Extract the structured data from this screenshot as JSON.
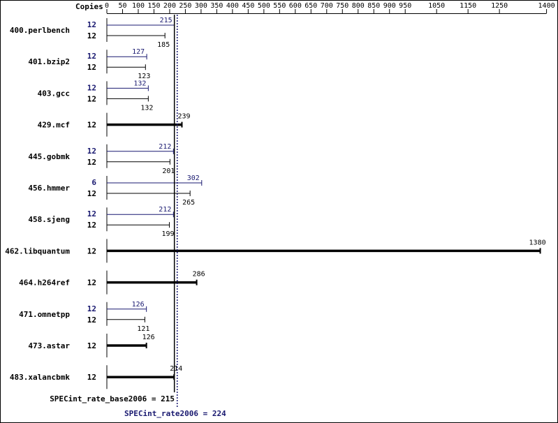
{
  "chart_data": {
    "type": "bar",
    "copies_header": "Copies",
    "x_ticks": [
      0,
      50,
      100,
      150,
      200,
      250,
      300,
      350,
      400,
      450,
      500,
      550,
      600,
      650,
      700,
      750,
      800,
      850,
      900,
      950,
      1050,
      1150,
      1250,
      1400
    ],
    "xlim": [
      0,
      1400
    ],
    "colors": {
      "peak": "#191970",
      "base": "#000000",
      "frame": "#000000"
    },
    "benchmarks": [
      {
        "name": "400.perlbench",
        "peak_copies": "12",
        "peak": 215,
        "base_copies": "12",
        "base": 185
      },
      {
        "name": "401.bzip2",
        "peak_copies": "12",
        "peak": 127,
        "base_copies": "12",
        "base": 123
      },
      {
        "name": "403.gcc",
        "peak_copies": "12",
        "peak": 132,
        "base_copies": "12",
        "base": 132
      },
      {
        "name": "429.mcf",
        "base_copies": "12",
        "base": 239
      },
      {
        "name": "445.gobmk",
        "peak_copies": "12",
        "peak": 212,
        "base_copies": "12",
        "base": 201
      },
      {
        "name": "456.hmmer",
        "peak_copies": "6",
        "peak": 302,
        "base_copies": "12",
        "base": 265
      },
      {
        "name": "458.sjeng",
        "peak_copies": "12",
        "peak": 212,
        "base_copies": "12",
        "base": 199
      },
      {
        "name": "462.libquantum",
        "base_copies": "12",
        "base": 1380
      },
      {
        "name": "464.h264ref",
        "base_copies": "12",
        "base": 286
      },
      {
        "name": "471.omnetpp",
        "peak_copies": "12",
        "peak": 126,
        "base_copies": "12",
        "base": 121
      },
      {
        "name": "473.astar",
        "base_copies": "12",
        "base": 126
      },
      {
        "name": "483.xalancbmk",
        "base_copies": "12",
        "base": 214
      }
    ],
    "base_summary": {
      "label": "SPECint_rate_base2006 = 215",
      "value": 215
    },
    "peak_summary": {
      "label": "SPECint_rate2006 = 224",
      "value": 224
    }
  }
}
